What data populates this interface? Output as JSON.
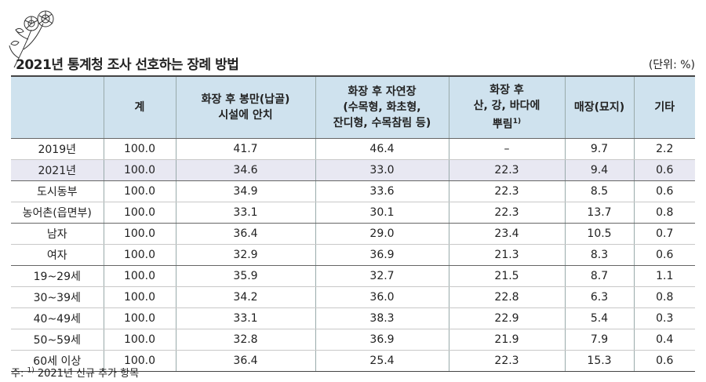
{
  "title": "2021년 통계청 조사 선호하는 장례 방법",
  "unit": "(단위: %)",
  "headers": [
    {
      "line1": "",
      "line2": "계",
      "line3": ""
    },
    {
      "line1": "화장 후 봉만(납골)",
      "line2": "시설에 안치",
      "line3": ""
    },
    {
      "line1": "화장 후 자연장",
      "line2": "(수목형, 화초형,",
      "line3": "잔디형, 수목참림 등)"
    },
    {
      "line1": "화장 후",
      "line2": "산, 강, 바다에",
      "line3": "뿌림",
      "sup": "1)"
    },
    {
      "line1": "매장(묘지)",
      "line2": "",
      "line3": ""
    },
    {
      "line1": "기타",
      "line2": "",
      "line3": ""
    }
  ],
  "rows": [
    {
      "label": "2019년",
      "values": [
        "100.0",
        "41.7",
        "46.4",
        "–",
        "9.7",
        "2.2"
      ]
    },
    {
      "label": "2021년",
      "values": [
        "100.0",
        "34.6",
        "33.0",
        "22.3",
        "9.4",
        "0.6"
      ]
    },
    {
      "label": "도시동부",
      "values": [
        "100.0",
        "34.9",
        "33.6",
        "22.3",
        "8.5",
        "0.6"
      ]
    },
    {
      "label": "농어촌(읍면부)",
      "values": [
        "100.0",
        "33.1",
        "30.1",
        "22.3",
        "13.7",
        "0.8"
      ]
    },
    {
      "label": "남자",
      "values": [
        "100.0",
        "36.4",
        "29.0",
        "23.4",
        "10.5",
        "0.7"
      ]
    },
    {
      "label": "여자",
      "values": [
        "100.0",
        "32.9",
        "36.9",
        "21.3",
        "8.3",
        "0.6"
      ]
    },
    {
      "label": "19~29세",
      "values": [
        "100.0",
        "35.9",
        "32.7",
        "21.5",
        "8.7",
        "1.1"
      ]
    },
    {
      "label": "30~39세",
      "values": [
        "100.0",
        "34.2",
        "36.0",
        "22.8",
        "6.3",
        "0.8"
      ]
    },
    {
      "label": "40~49세",
      "values": [
        "100.0",
        "33.1",
        "38.3",
        "22.9",
        "5.4",
        "0.3"
      ]
    },
    {
      "label": "50~59세",
      "values": [
        "100.0",
        "32.8",
        "36.9",
        "21.9",
        "7.9",
        "0.4"
      ]
    },
    {
      "label": "60세 이상",
      "values": [
        "100.0",
        "36.4",
        "25.4",
        "22.3",
        "15.3",
        "0.6"
      ]
    }
  ],
  "note": {
    "prefix": "주: ",
    "sup": "1)",
    "text": " 2021년 신규 추가 항목"
  }
}
